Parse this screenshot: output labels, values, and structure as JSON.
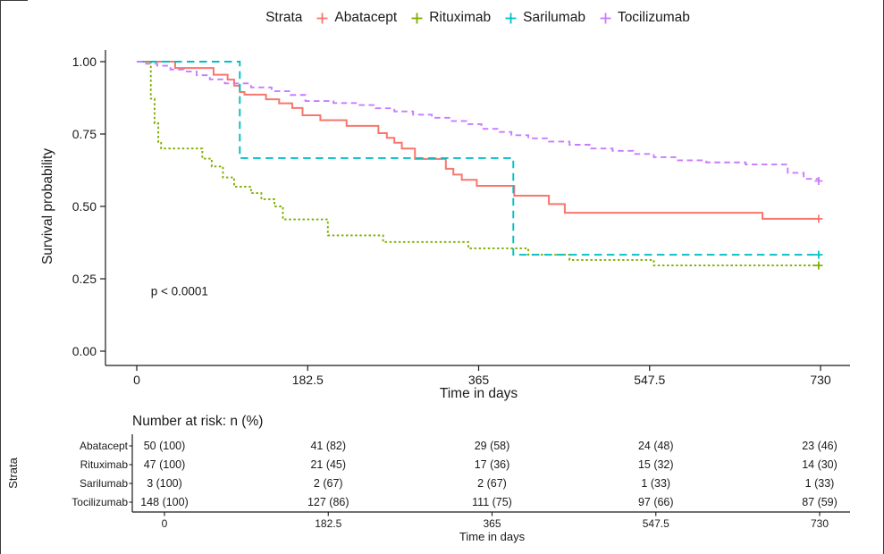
{
  "legend": {
    "title": "Strata",
    "items": [
      {
        "label": "Abatacept",
        "color": "#F8766D"
      },
      {
        "label": "Rituximab",
        "color": "#7CAE00"
      },
      {
        "label": "Sarilumab",
        "color": "#00BFC4"
      },
      {
        "label": "Tocilizumab",
        "color": "#C77CFF"
      }
    ]
  },
  "chart_data": {
    "type": "line",
    "subtype": "kaplan-meier-step",
    "xlabel": "Time in days",
    "ylabel": "Survival probability",
    "xlim": [
      0,
      730
    ],
    "ylim": [
      0,
      1
    ],
    "grid": false,
    "legend_position": "top",
    "xticks": [
      0,
      182.5,
      365,
      547.5,
      730
    ],
    "xtick_labels": [
      "0",
      "182.5",
      "365",
      "547.5",
      "730"
    ],
    "yticks": [
      1.0,
      0.75,
      0.5,
      0.25,
      0.0
    ],
    "ytick_labels": [
      "1.00",
      "0.75",
      "0.50",
      "0.25",
      "0.00"
    ],
    "annotation": {
      "text": "p < 0.0001",
      "x": 15,
      "y": 0.205
    },
    "series": [
      {
        "name": "Abatacept",
        "color": "#F8766D",
        "dash": "solid",
        "censor_end": true,
        "steps": [
          [
            0,
            1.0
          ],
          [
            41,
            0.978
          ],
          [
            82,
            0.955
          ],
          [
            97,
            0.938
          ],
          [
            104,
            0.917
          ],
          [
            110,
            0.895
          ],
          [
            115,
            0.886
          ],
          [
            138,
            0.87
          ],
          [
            152,
            0.856
          ],
          [
            166,
            0.84
          ],
          [
            177,
            0.815
          ],
          [
            196,
            0.798
          ],
          [
            224,
            0.778
          ],
          [
            258,
            0.753
          ],
          [
            267,
            0.737
          ],
          [
            275,
            0.72
          ],
          [
            283,
            0.7
          ],
          [
            297,
            0.664
          ],
          [
            330,
            0.63
          ],
          [
            338,
            0.61
          ],
          [
            347,
            0.592
          ],
          [
            363,
            0.571
          ],
          [
            403,
            0.537
          ],
          [
            440,
            0.508
          ],
          [
            457,
            0.478
          ],
          [
            668,
            0.457
          ],
          [
            728,
            0.457
          ]
        ]
      },
      {
        "name": "Rituximab",
        "color": "#7CAE00",
        "dash": "dotted",
        "censor_end": true,
        "steps": [
          [
            0,
            1.0
          ],
          [
            15,
            0.872
          ],
          [
            19,
            0.787
          ],
          [
            23,
            0.723
          ],
          [
            26,
            0.7
          ],
          [
            70,
            0.665
          ],
          [
            80,
            0.638
          ],
          [
            92,
            0.6
          ],
          [
            104,
            0.568
          ],
          [
            122,
            0.546
          ],
          [
            133,
            0.525
          ],
          [
            147,
            0.5
          ],
          [
            156,
            0.455
          ],
          [
            204,
            0.4
          ],
          [
            263,
            0.377
          ],
          [
            354,
            0.355
          ],
          [
            418,
            0.333
          ],
          [
            462,
            0.315
          ],
          [
            552,
            0.296
          ],
          [
            728,
            0.296
          ]
        ]
      },
      {
        "name": "Sarilumab",
        "color": "#00BFC4",
        "dash": "dashed",
        "censor_end": true,
        "steps": [
          [
            0,
            1.0
          ],
          [
            110,
            0.667
          ],
          [
            402,
            0.333
          ],
          [
            728,
            0.333
          ]
        ]
      },
      {
        "name": "Tocilizumab",
        "color": "#C77CFF",
        "dash": "longdash",
        "censor_end": true,
        "steps": [
          [
            0,
            1.0
          ],
          [
            10,
            0.993
          ],
          [
            22,
            0.986
          ],
          [
            36,
            0.973
          ],
          [
            50,
            0.966
          ],
          [
            64,
            0.953
          ],
          [
            78,
            0.939
          ],
          [
            94,
            0.925
          ],
          [
            122,
            0.911
          ],
          [
            144,
            0.898
          ],
          [
            164,
            0.885
          ],
          [
            180,
            0.864
          ],
          [
            210,
            0.857
          ],
          [
            235,
            0.85
          ],
          [
            255,
            0.839
          ],
          [
            275,
            0.828
          ],
          [
            295,
            0.817
          ],
          [
            315,
            0.806
          ],
          [
            335,
            0.795
          ],
          [
            352,
            0.784
          ],
          [
            368,
            0.768
          ],
          [
            385,
            0.757
          ],
          [
            400,
            0.746
          ],
          [
            418,
            0.735
          ],
          [
            440,
            0.724
          ],
          [
            462,
            0.713
          ],
          [
            485,
            0.7
          ],
          [
            508,
            0.692
          ],
          [
            530,
            0.681
          ],
          [
            552,
            0.67
          ],
          [
            575,
            0.659
          ],
          [
            608,
            0.652
          ],
          [
            650,
            0.645
          ],
          [
            695,
            0.616
          ],
          [
            712,
            0.595
          ],
          [
            728,
            0.588
          ]
        ]
      }
    ]
  },
  "risk_table": {
    "title": "Number at risk: n (%)",
    "ylabel": "Strata",
    "xlabel": "Time in days",
    "xticks": [
      0,
      182.5,
      365,
      547.5,
      730
    ],
    "xtick_labels": [
      "0",
      "182.5",
      "365",
      "547.5",
      "730"
    ],
    "rows": [
      {
        "label": "Abatacept",
        "values": [
          "50 (100)",
          "41 (82)",
          "29 (58)",
          "24 (48)",
          "23 (46)"
        ]
      },
      {
        "label": "Rituximab",
        "values": [
          "47 (100)",
          "21 (45)",
          "17 (36)",
          "15 (32)",
          "14 (30)"
        ]
      },
      {
        "label": "Sarilumab",
        "values": [
          "3 (100)",
          "2 (67)",
          "2 (67)",
          "1 (33)",
          "1 (33)"
        ]
      },
      {
        "label": "Tocilizumab",
        "values": [
          "148 (100)",
          "127 (86)",
          "111 (75)",
          "97 (66)",
          "87 (59)"
        ]
      }
    ]
  }
}
